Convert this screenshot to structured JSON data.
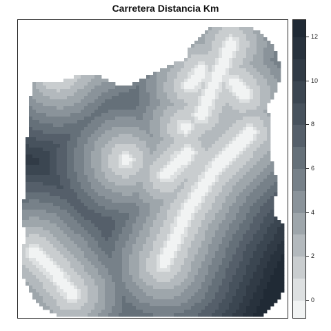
{
  "title": "Carretera Distancia Km",
  "legend": {
    "ticks": [
      "0",
      "2",
      "4",
      "6",
      "8",
      "10",
      "12"
    ],
    "range": [
      -0.8,
      12.8
    ],
    "class_breaks": [
      0.0,
      0.0,
      1.0,
      2.0,
      3.0,
      4.0,
      5.0,
      6.0,
      7.0,
      8.0,
      9.0,
      10.0,
      11.0,
      12.0,
      12.8
    ],
    "colors": [
      "#f1f3f3",
      "#dde0e1",
      "#c9cdcf",
      "#b3b9bd",
      "#9ea6ab",
      "#8a939a",
      "#778189",
      "#657079",
      "#555f6a",
      "#47525d",
      "#3b4651",
      "#313b46",
      "#28323d",
      "#202a35"
    ]
  },
  "map": {
    "roads": [
      {
        "points": [
          [
            0.06,
            0.78
          ],
          [
            0.13,
            0.84
          ],
          [
            0.2,
            0.92
          ]
        ]
      },
      {
        "points": [
          [
            0.54,
            0.82
          ],
          [
            0.63,
            0.64
          ],
          [
            0.73,
            0.5
          ],
          [
            0.86,
            0.38
          ]
        ]
      },
      {
        "points": [
          [
            0.55,
            0.52
          ],
          [
            0.63,
            0.45
          ]
        ]
      },
      {
        "points": [
          [
            0.68,
            0.32
          ],
          [
            0.72,
            0.23
          ],
          [
            0.76,
            0.15
          ],
          [
            0.79,
            0.08
          ]
        ]
      },
      {
        "points": [
          [
            0.15,
            0.18
          ],
          [
            0.23,
            0.12
          ],
          [
            0.35,
            0.07
          ]
        ]
      },
      {
        "points": [
          [
            0.64,
            0.22
          ],
          [
            0.68,
            0.17
          ]
        ]
      },
      {
        "points": [
          [
            0.84,
            0.25
          ],
          [
            0.8,
            0.21
          ]
        ]
      }
    ],
    "points": [
      [
        0.4,
        0.47
      ],
      [
        0.6,
        0.47
      ],
      [
        0.62,
        0.36
      ]
    ]
  }
}
